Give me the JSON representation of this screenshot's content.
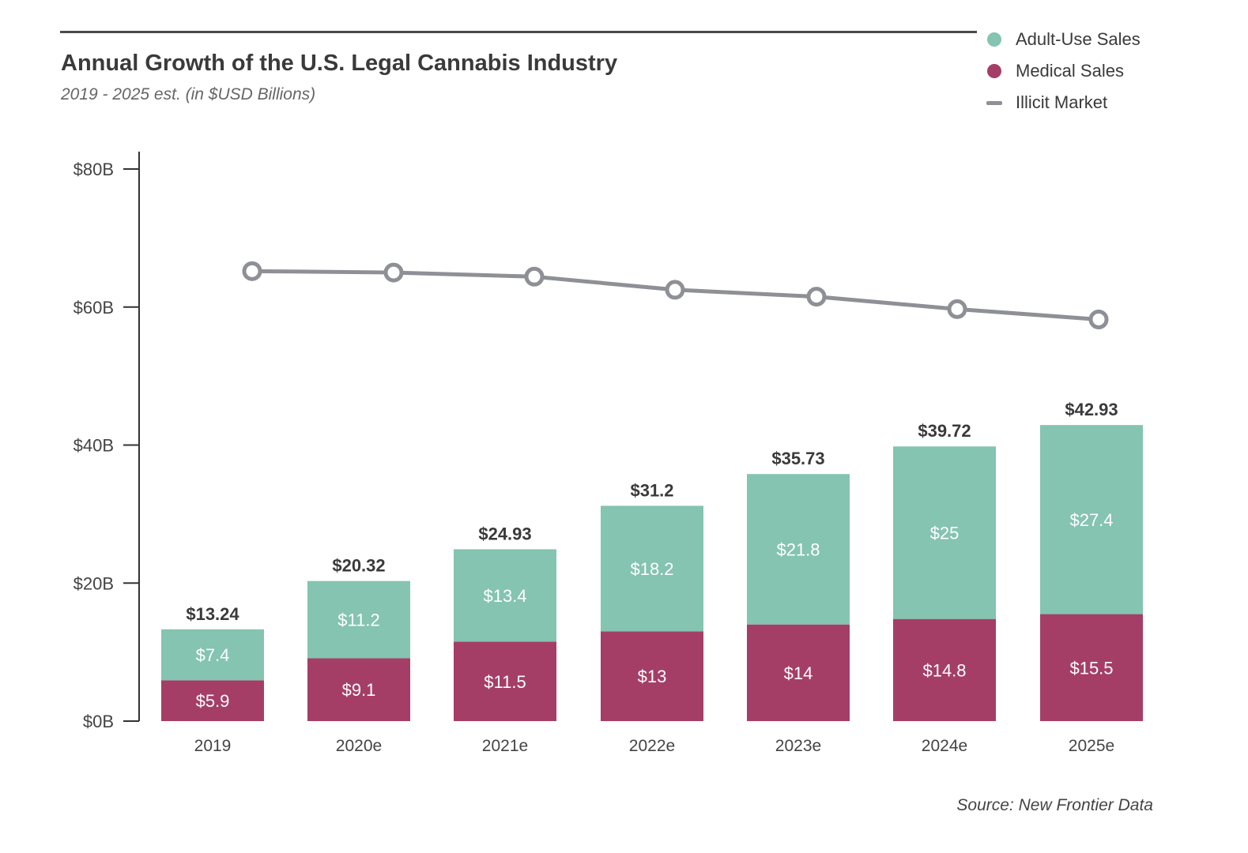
{
  "chart_data": {
    "type": "bar",
    "stacked": true,
    "title": "Annual Growth of the U.S. Legal Cannabis Industry",
    "subtitle": "2019 - 2025 est. (in $USD Billions)",
    "categories": [
      "2019",
      "2020e",
      "2021e",
      "2022e",
      "2023e",
      "2024e",
      "2025e"
    ],
    "series": [
      {
        "name": "Medical Sales",
        "type": "bar",
        "color": "#a53e66",
        "values": [
          5.9,
          9.1,
          11.5,
          13,
          14,
          14.8,
          15.5
        ],
        "labels": [
          "$5.9",
          "$9.1",
          "$11.5",
          "$13",
          "$14",
          "$14.8",
          "$15.5"
        ]
      },
      {
        "name": "Adult-Use Sales",
        "type": "bar",
        "color": "#84c4b0",
        "values": [
          7.4,
          11.2,
          13.4,
          18.2,
          21.8,
          25,
          27.4
        ],
        "labels": [
          "$7.4",
          "$11.2",
          "$13.4",
          "$18.2",
          "$21.8",
          "$25",
          "$27.4"
        ]
      },
      {
        "name": "Illicit Market",
        "type": "line",
        "color": "#8e9096",
        "values": [
          65.2,
          65.0,
          64.4,
          62.5,
          61.5,
          59.7,
          58.2
        ]
      }
    ],
    "totals": [
      13.24,
      20.32,
      24.93,
      31.2,
      35.73,
      39.72,
      42.93
    ],
    "total_labels": [
      "$13.24",
      "$20.32",
      "$24.93",
      "$31.2",
      "$35.73",
      "$39.72",
      "$42.93"
    ],
    "yticks": [
      0,
      20,
      40,
      60,
      80
    ],
    "ytick_labels": [
      "$0B",
      "$20B",
      "$40B",
      "$60B",
      "$80B"
    ],
    "ylim": [
      0,
      80
    ],
    "legend_position": "top-right",
    "legend": [
      {
        "label": "Adult-Use Sales",
        "color": "#84c4b0",
        "marker": "dot"
      },
      {
        "label": "Medical Sales",
        "color": "#a53e66",
        "marker": "dot"
      },
      {
        "label": "Illicit Market",
        "color": "#8e9096",
        "marker": "line"
      }
    ],
    "source": "Source: New Frontier Data"
  }
}
